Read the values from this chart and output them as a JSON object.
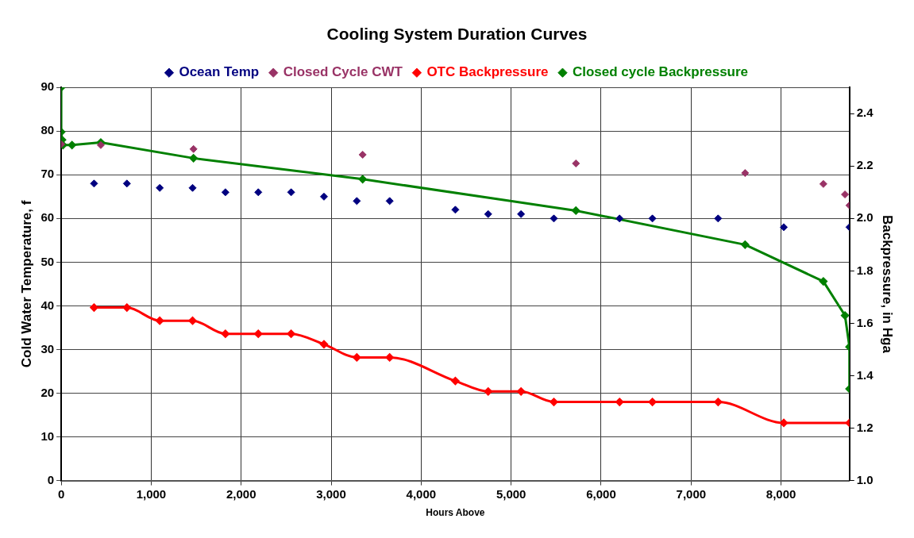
{
  "chart_data": {
    "type": "scatter",
    "title": "Cooling System Duration Curves",
    "xlabel": "Hours Above",
    "ylabel": "Cold Water Temperature, f",
    "y2label": "Backpressure, in Hga",
    "xlim": [
      0,
      8760
    ],
    "xticks": [
      0,
      {
        "value": 1000,
        "label": "1,000"
      },
      {
        "value": 2000,
        "label": "2,000"
      },
      {
        "value": 3000,
        "label": "3,000"
      },
      {
        "value": 4000,
        "label": "4,000"
      },
      {
        "value": 5000,
        "label": "5,000"
      },
      {
        "value": 6000,
        "label": "6,000"
      },
      {
        "value": 7000,
        "label": "7,000"
      },
      {
        "value": 8000,
        "label": "8,000"
      }
    ],
    "ylim": [
      0,
      90
    ],
    "yticks": [
      0,
      10,
      20,
      30,
      40,
      50,
      60,
      70,
      80,
      90
    ],
    "y2lim": [
      1.0,
      2.5
    ],
    "y2ticks": [
      {
        "value": 1.0,
        "label": "1.0"
      },
      1.2,
      1.4,
      1.6,
      1.8,
      {
        "value": 2.0,
        "label": "2.0"
      },
      2.2,
      2.4
    ],
    "grid": true,
    "legend": "top",
    "marker": "diamond",
    "line_style": "solid",
    "series": [
      {
        "name": "Ocean Temp",
        "color": "#000080",
        "x": [
          365,
          730,
          1095,
          1460,
          1825,
          2190,
          2555,
          2920,
          3285,
          3650,
          4380,
          4745,
          5110,
          5475,
          6205,
          6570,
          7300,
          8030,
          8760
        ],
        "values": [
          68,
          68,
          67,
          67,
          66,
          66,
          66,
          65,
          64,
          64,
          62,
          61,
          61,
          60,
          60,
          60,
          60,
          58,
          58
        ]
      },
      {
        "name": "Closed Cycle CWT",
        "color": "#993366",
        "x": [
          0,
          440,
          1470,
          3350,
          5720,
          7600,
          8470,
          8710,
          8760
        ],
        "values": [
          77,
          76.8,
          75.9,
          74.6,
          72.6,
          70.4,
          67.9,
          65.5,
          63
        ]
      },
      {
        "name": "OTC Backpressure",
        "type": "line",
        "axis": "y2",
        "color": "#ff0000",
        "x": [
          365,
          730,
          1095,
          1460,
          1825,
          2190,
          2555,
          2920,
          3285,
          3650,
          4380,
          4745,
          5110,
          5475,
          6205,
          6570,
          7300,
          8030,
          8760
        ],
        "values": [
          1.66,
          1.66,
          1.61,
          1.61,
          1.56,
          1.56,
          1.56,
          1.52,
          1.47,
          1.47,
          1.38,
          1.34,
          1.34,
          1.3,
          1.3,
          1.3,
          1.3,
          1.22,
          1.22
        ]
      },
      {
        "name": "Closed cycle Backpressure",
        "type": "line",
        "axis": "y2",
        "color": "#008000",
        "x": [
          0,
          0,
          10,
          20,
          120,
          440,
          1470,
          3350,
          5720,
          7600,
          8470,
          8710,
          8760,
          8760
        ],
        "values": [
          2.5,
          2.33,
          2.3,
          2.28,
          2.28,
          2.29,
          2.23,
          2.15,
          2.03,
          1.9,
          1.76,
          1.63,
          1.51,
          1.35
        ]
      }
    ]
  }
}
